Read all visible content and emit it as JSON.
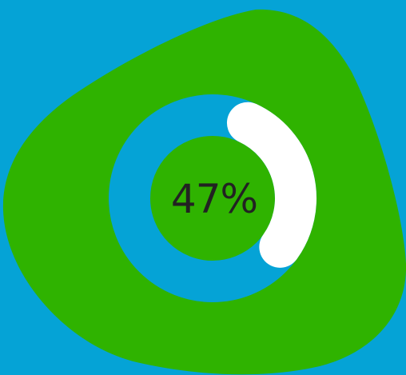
{
  "progress": {
    "value": 0.47,
    "label": "47%"
  },
  "colors": {
    "background": "#05A3D6",
    "blob": "#2FB300",
    "ring_track": "#05A3D6",
    "ring_fill": "#FFFFFF",
    "label_text": "#222222"
  }
}
